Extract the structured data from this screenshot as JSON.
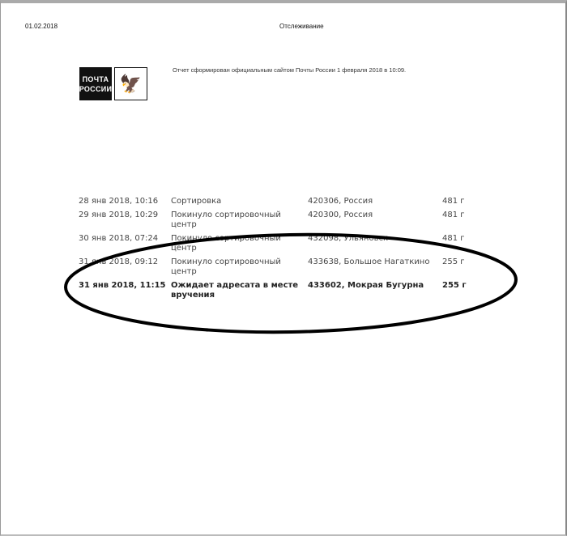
{
  "header": {
    "date": "01.02.2018",
    "title": "Отслеживание"
  },
  "logo": {
    "line1": "ПОЧТА",
    "line2": "РОССИИ"
  },
  "report_note": "Отчет сформирован официальным сайтом Почты России 1 февраля 2018 в 10:09.",
  "rows": [
    {
      "datetime": "28 янв 2018, 10:16",
      "status": "Сортировка",
      "place": "420306, Россия",
      "weight": "481 г"
    },
    {
      "datetime": "29 янв 2018, 10:29",
      "status": "Покинуло сортировочный центр",
      "place": "420300, Россия",
      "weight": "481 г"
    },
    {
      "datetime": "30 янв 2018, 07:24",
      "status": "Покинуло сортировочный центр",
      "place": "432098, Ульяновск",
      "weight": "481 г"
    },
    {
      "datetime": "31 янв 2018, 09:12",
      "status": "Покинуло сортировочный центр",
      "place": "433638, Большое Нагаткино",
      "weight": "255 г"
    },
    {
      "datetime": "31 янв 2018, 11:15",
      "status": "Ожидает адресата в месте вручения",
      "place": "433602, Мокрая Бугурна",
      "weight": "255 г"
    }
  ]
}
